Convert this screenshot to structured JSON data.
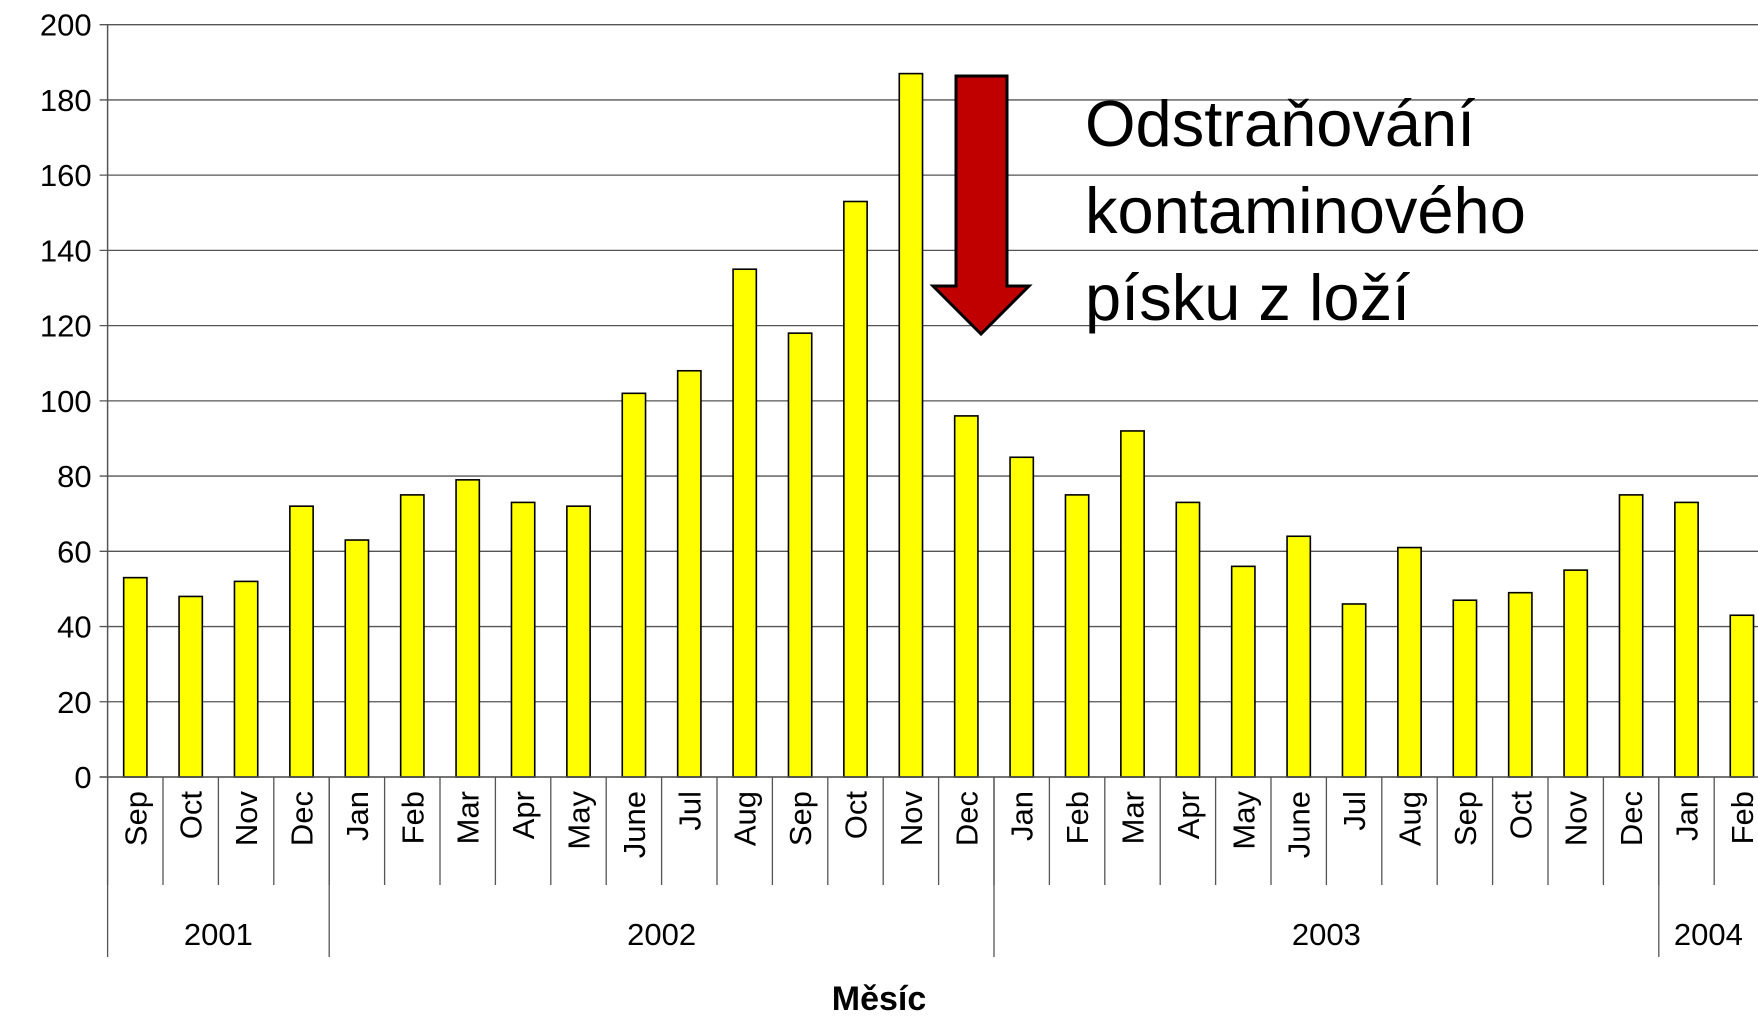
{
  "chart_data": {
    "type": "bar",
    "categories": [
      "Sep",
      "Oct",
      "Nov",
      "Dec",
      "Jan",
      "Feb",
      "Mar",
      "Apr",
      "May",
      "June",
      "Jul",
      "Aug",
      "Sep",
      "Oct",
      "Nov",
      "Dec",
      "Jan",
      "Feb",
      "Mar",
      "Apr",
      "May",
      "June",
      "Jul",
      "Aug",
      "Sep",
      "Oct",
      "Nov",
      "Dec",
      "Jan",
      "Feb"
    ],
    "values": [
      53,
      48,
      52,
      72,
      63,
      75,
      79,
      73,
      72,
      102,
      108,
      135,
      118,
      153,
      187,
      96,
      85,
      75,
      92,
      73,
      56,
      64,
      46,
      61,
      47,
      49,
      55,
      75,
      73,
      43
    ],
    "x_groups": [
      {
        "label": "2001",
        "span": 4
      },
      {
        "label": "2002",
        "span": 12
      },
      {
        "label": "2003",
        "span": 12
      },
      {
        "label": "2004",
        "span": 2
      }
    ],
    "color": "#ffff00",
    "ylim": [
      0,
      200
    ],
    "yticks": [
      0,
      20,
      40,
      60,
      80,
      100,
      120,
      140,
      160,
      180,
      200
    ],
    "grid": true,
    "xlabel": "Měsíc",
    "annotation": [
      "Odstraňování",
      "kontaminového",
      "písku z loží"
    ]
  }
}
